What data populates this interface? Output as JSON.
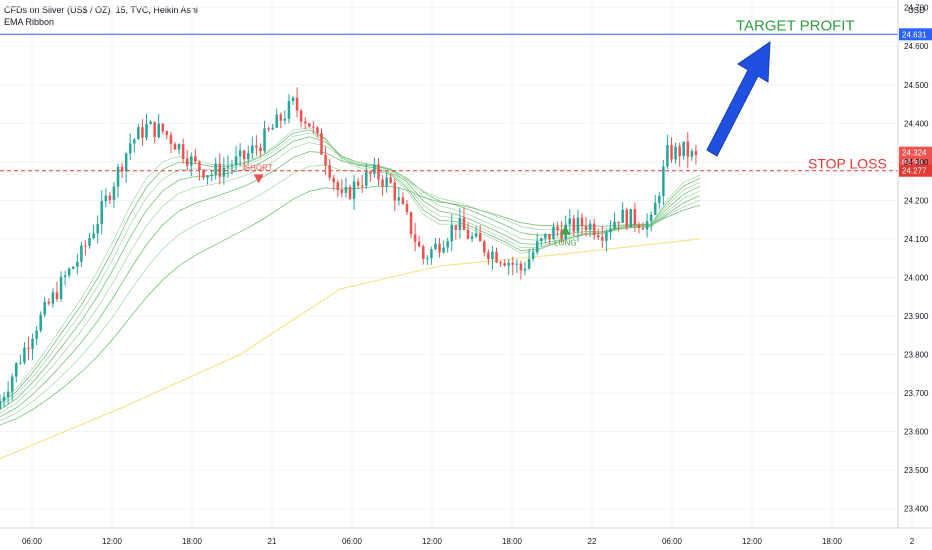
{
  "header": {
    "title": "CFDs on Silver (US$ / OZ), 15, TVC, Heikin Ashi",
    "indicator": "EMA Ribbon"
  },
  "colors": {
    "up": "#26a69a",
    "down": "#ef5350",
    "price_line": "#2962ff",
    "stop_line": "#e53935",
    "ema200": "#f5e58a",
    "target_text": "#2e9e45",
    "stop_text": "#e53935",
    "arrow": "#2050e0",
    "signal_up": "#43a047"
  },
  "chart_data": {
    "type": "candlestick",
    "chart_style": "Heikin Ashi",
    "y_axis_unit": "USD",
    "ylim": [
      23.35,
      24.72
    ],
    "y_ticks": [
      "24.700",
      "24.600",
      "24.500",
      "24.400",
      "24.300",
      "24.200",
      "24.100",
      "24.000",
      "23.900",
      "23.800",
      "23.700",
      "23.600",
      "23.500",
      "23.400"
    ],
    "x_ticks": [
      "06:00",
      "12:00",
      "18:00",
      "21",
      "06:00",
      "12:00",
      "18:00",
      "22",
      "06:00",
      "12:00",
      "18:00",
      "2"
    ],
    "price_labels": {
      "target": "24.631",
      "current": "24.324",
      "countdown": "03:39",
      "stop": "24.277"
    },
    "levels": {
      "target_profit": 24.631,
      "stop_loss": 24.277
    },
    "annotations": {
      "target": "TARGET PROFIT",
      "stop": "STOP LOSS"
    },
    "signals": [
      {
        "label": "LONG",
        "type": "long",
        "time": "d1 02:30",
        "price": 23.68
      },
      {
        "label": "SHORT",
        "type": "short",
        "time": "d1 23:00",
        "price": 24.27
      },
      {
        "label": "LONG",
        "type": "long",
        "time": "d2 22:00",
        "price": 24.15
      }
    ],
    "price_path": {
      "start_time": "d1 02:20",
      "bar_minutes": 15,
      "closes": [
        23.68,
        23.77,
        23.86,
        23.93,
        24.0,
        24.06,
        24.15,
        24.25,
        24.35,
        24.39,
        24.38,
        24.34,
        24.29,
        24.27,
        24.29,
        24.31,
        24.35,
        24.4,
        24.45,
        24.4,
        24.31,
        24.2,
        24.25,
        24.27,
        24.24,
        24.15,
        24.05,
        24.09,
        24.14,
        24.1,
        24.07,
        24.05,
        24.02,
        24.08,
        24.12,
        24.13,
        24.14,
        24.12,
        24.16,
        24.15,
        24.14,
        24.32,
        24.33,
        24.3
      ]
    },
    "ema200": {
      "points": [
        [
          0,
          23.53
        ],
        [
          120,
          23.66
        ],
        [
          240,
          23.8
        ],
        [
          340,
          23.97
        ],
        [
          440,
          24.03
        ],
        [
          560,
          24.06
        ],
        [
          700,
          24.1
        ]
      ]
    },
    "ribbon_count": 8
  }
}
